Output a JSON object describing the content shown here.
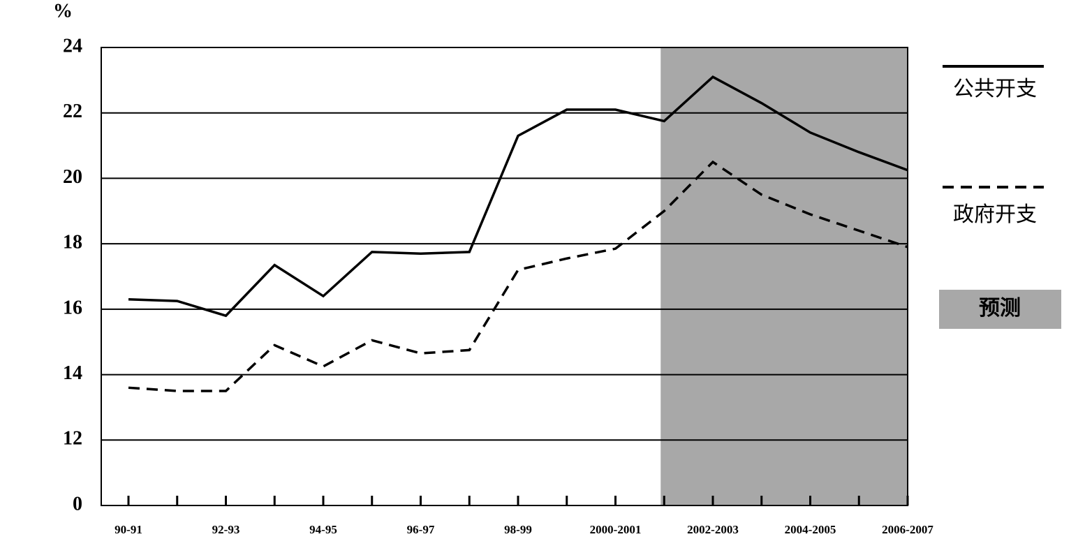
{
  "chart_data": {
    "type": "line",
    "y_label": "%",
    "categories": [
      "90-91",
      null,
      "92-93",
      null,
      "94-95",
      null,
      "96-97",
      null,
      "98-99",
      null,
      "2000-2001",
      null,
      "2002-2003",
      null,
      "2004-2005",
      null,
      "2006-2007"
    ],
    "series": [
      {
        "name": "公共开支",
        "color": "#000000",
        "line_style": "solid",
        "values": [
          16.3,
          16.25,
          15.8,
          17.35,
          16.4,
          17.75,
          17.7,
          17.75,
          21.3,
          22.1,
          22.1,
          21.75,
          23.1,
          22.3,
          21.4,
          20.8,
          20.25
        ]
      },
      {
        "name": "政府开支",
        "color": "#000000",
        "line_style": "dashed",
        "values": [
          13.6,
          13.5,
          13.5,
          14.9,
          14.25,
          15.05,
          14.65,
          14.75,
          17.2,
          17.55,
          17.85,
          19.0,
          20.5,
          19.5,
          18.9,
          18.4,
          17.9
        ]
      }
    ],
    "forecast": {
      "label": "预测",
      "from_index": 11,
      "color": "#a8a8a8"
    },
    "ylim": [
      0,
      24
    ],
    "ybreak": [
      0,
      12
    ],
    "yticks": [
      0,
      12,
      14,
      16,
      18,
      20,
      22,
      24
    ],
    "grid": true
  }
}
